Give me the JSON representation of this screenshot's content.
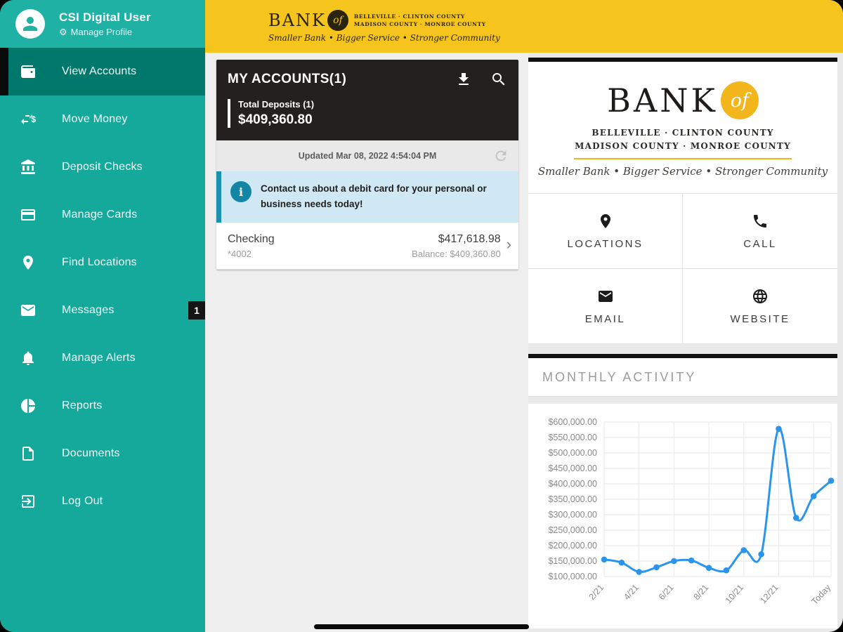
{
  "brand": {
    "name": "BANK",
    "of": "of",
    "counties1": "BELLEVILLE · CLINTON COUNTY",
    "counties2": "MADISON COUNTY · MONROE COUNTY",
    "tagline": "Smaller Bank • Bigger Service • Stronger Community"
  },
  "sidebar": {
    "profile": {
      "name": "CSI Digital User",
      "manage_label": "Manage Profile"
    },
    "items": [
      {
        "label": "View Accounts",
        "icon": "accounts-icon",
        "active": true
      },
      {
        "label": "Move Money",
        "icon": "move-money-icon"
      },
      {
        "label": "Deposit Checks",
        "icon": "deposit-checks-icon"
      },
      {
        "label": "Manage Cards",
        "icon": "manage-cards-icon"
      },
      {
        "label": "Find Locations",
        "icon": "find-locations-icon"
      },
      {
        "label": "Messages",
        "icon": "messages-icon",
        "badge": "1"
      },
      {
        "label": "Manage Alerts",
        "icon": "manage-alerts-icon"
      },
      {
        "label": "Reports",
        "icon": "reports-icon"
      },
      {
        "label": "Documents",
        "icon": "documents-icon"
      },
      {
        "label": "Log Out",
        "icon": "log-out-icon"
      }
    ]
  },
  "accounts": {
    "title": "MY ACCOUNTS(1)",
    "header_icons": [
      "download-icon",
      "search-icon"
    ],
    "total_label": "Total Deposits (1)",
    "total_value": "$409,360.80",
    "updated": "Updated Mar 08, 2022 4:54:04 PM",
    "notice": "Contact us about a debit card for your personal or business needs today!",
    "rows": [
      {
        "name": "Checking",
        "number": "*4002",
        "available": "$417,618.98",
        "balance": "Balance: $409,360.80"
      }
    ]
  },
  "contact": {
    "buttons": [
      {
        "label": "LOCATIONS",
        "icon": "location-pin-icon"
      },
      {
        "label": "CALL",
        "icon": "phone-icon"
      },
      {
        "label": "EMAIL",
        "icon": "email-icon"
      },
      {
        "label": "WEBSITE",
        "icon": "globe-icon"
      }
    ]
  },
  "chart_card": {
    "title": "MONTHLY ACTIVITY"
  },
  "chart_data": {
    "type": "line",
    "title": "MONTHLY ACTIVITY",
    "x": [
      "2/21",
      "3/21",
      "4/21",
      "5/21",
      "6/21",
      "7/21",
      "8/21",
      "9/21",
      "10/21",
      "11/21",
      "12/21",
      "1/22",
      "2/22",
      "Today"
    ],
    "x_tick_shown": [
      "2/21",
      "4/21",
      "6/21",
      "8/21",
      "10/21",
      "12/21",
      "Today"
    ],
    "values": [
      155000,
      145000,
      115000,
      130000,
      150000,
      152000,
      128000,
      120000,
      185000,
      172000,
      578000,
      290000,
      360000,
      410000
    ],
    "ylim": [
      100000,
      600000
    ],
    "y_tick_step": 50000,
    "y_tick_labels": [
      "$600,000.00",
      "$550,000.00",
      "$500,000.00",
      "$450,000.00",
      "$400,000.00",
      "$350,000.00",
      "$300,000.00",
      "$250,000.00",
      "$200,000.00",
      "$150,000.00",
      "$100,000.00"
    ],
    "grid": true,
    "legend": false,
    "line_color": "#2b95ec"
  },
  "colors": {
    "sidebar_teal": "#15a99c",
    "sidebar_active_teal": "#00786b",
    "header_yellow": "#f6c51d",
    "dark_header": "#242020",
    "notice_blue_bg": "#d0e8f3",
    "notice_blue_accent": "#1a8fae",
    "chart_line_blue": "#2b95ec",
    "logo_yellow": "#f2b61c"
  }
}
